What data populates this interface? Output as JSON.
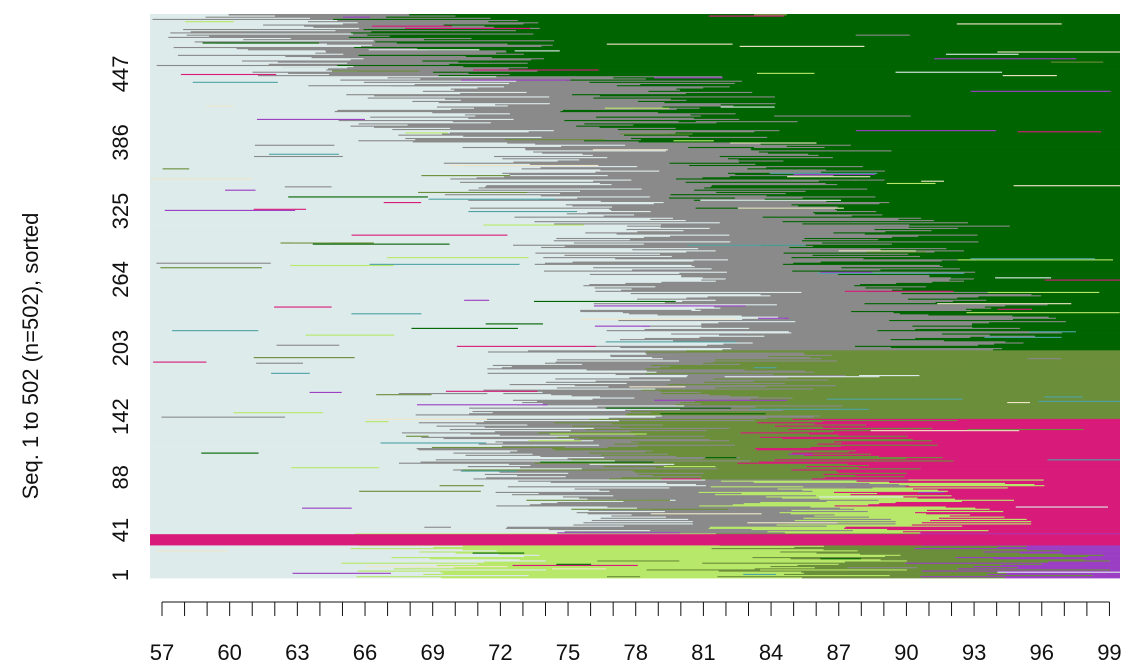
{
  "chart_data": {
    "type": "heatmap",
    "subtype": "sequence index plot",
    "ylabel": "Seq. 1 to 502 (n=502), sorted",
    "xlabel": "",
    "title": "",
    "x_tick_labels": [
      "57",
      "60",
      "63",
      "66",
      "69",
      "72",
      "75",
      "78",
      "81",
      "84",
      "87",
      "90",
      "93",
      "96",
      "99"
    ],
    "x_ticks_minor_range": [
      57,
      99
    ],
    "y_tick_labels": [
      "1",
      "41",
      "88",
      "142",
      "203",
      "264",
      "325",
      "386",
      "447"
    ],
    "n_sequences": 502,
    "xlim": [
      57,
      99
    ],
    "ylim": [
      1,
      502
    ],
    "grid": false,
    "legend": "none",
    "state_colors": {
      "s1": "#DDEBEB",
      "s2": "#8A8A8A",
      "s3": "#006400",
      "s4": "#6B8E3A",
      "s5": "#B8E86A",
      "s6": "#D81B7A",
      "s7": "#9B3FC4",
      "s8": "#4FA3A5",
      "s9": "#F0E6C8"
    },
    "state_zones": [
      {
        "seq_from": 1,
        "seq_to": 40,
        "start_age": 57,
        "transitions": [
          [
            57,
            "s1"
          ],
          [
            70,
            "s5"
          ],
          [
            86,
            "s4"
          ],
          [
            95,
            "s7"
          ]
        ]
      },
      {
        "seq_from": 41,
        "seq_to": 88,
        "start_age": 57,
        "transitions": [
          [
            57,
            "s1"
          ],
          [
            77,
            "s2"
          ],
          [
            86,
            "s5"
          ],
          [
            92,
            "s6"
          ]
        ]
      },
      {
        "seq_from": 89,
        "seq_to": 142,
        "start_age": 57,
        "transitions": [
          [
            57,
            "s1"
          ],
          [
            73,
            "s2"
          ],
          [
            79,
            "s4"
          ],
          [
            88,
            "s6"
          ]
        ]
      },
      {
        "seq_from": 143,
        "seq_to": 203,
        "start_age": 57,
        "transitions": [
          [
            57,
            "s1"
          ],
          [
            76,
            "s2"
          ],
          [
            83,
            "s4"
          ]
        ]
      },
      {
        "seq_from": 204,
        "seq_to": 264,
        "start_age": 57,
        "transitions": [
          [
            57,
            "s1"
          ],
          [
            81,
            "s2"
          ],
          [
            93,
            "s3"
          ]
        ]
      },
      {
        "seq_from": 265,
        "seq_to": 325,
        "start_age": 57,
        "transitions": [
          [
            57,
            "s1"
          ],
          [
            78,
            "s2"
          ],
          [
            89,
            "s3"
          ]
        ]
      },
      {
        "seq_from": 326,
        "seq_to": 386,
        "start_age": 57,
        "transitions": [
          [
            57,
            "s1"
          ],
          [
            75,
            "s2"
          ],
          [
            85,
            "s3"
          ]
        ]
      },
      {
        "seq_from": 387,
        "seq_to": 447,
        "start_age": 57,
        "transitions": [
          [
            57,
            "s1"
          ],
          [
            70,
            "s2"
          ],
          [
            80,
            "s3"
          ]
        ]
      },
      {
        "seq_from": 448,
        "seq_to": 502,
        "start_age": 57,
        "transitions": [
          [
            57,
            "s1"
          ],
          [
            62,
            "s2"
          ],
          [
            70,
            "s3"
          ]
        ]
      }
    ]
  }
}
